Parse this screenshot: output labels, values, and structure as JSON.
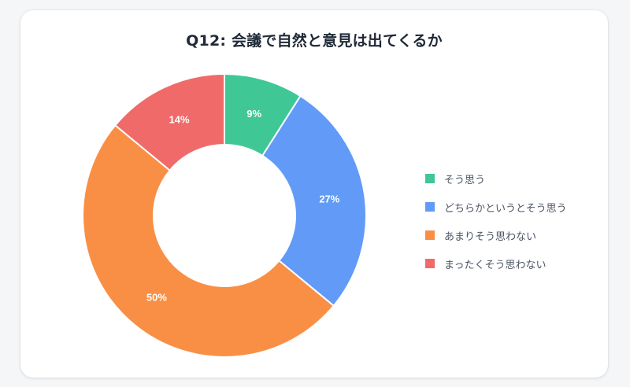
{
  "title": "Q12: 会議で自然と意見は出てくるか",
  "chart_data": {
    "type": "pie",
    "variant": "donut",
    "title": "Q12: 会議で自然と意見は出てくるか",
    "categories": [
      "そう思う",
      "どちらかというとそう思う",
      "あまりそう思わない",
      "まったくそう思わない"
    ],
    "values": [
      9,
      27,
      50,
      14
    ],
    "unit": "%",
    "data_labels": [
      "9%",
      "27%",
      "50%",
      "14%"
    ],
    "colors": [
      "#40c796",
      "#619bf7",
      "#f98f45",
      "#f06a6a"
    ],
    "start_angle_deg": 0,
    "direction": "clockwise",
    "legend_position": "right"
  },
  "legend": {
    "items": [
      {
        "label": "そう思う",
        "color": "#40c796"
      },
      {
        "label": "どちらかというとそう思う",
        "color": "#619bf7"
      },
      {
        "label": "あまりそう思わない",
        "color": "#f98f45"
      },
      {
        "label": "まったくそう思わない",
        "color": "#f06a6a"
      }
    ]
  }
}
